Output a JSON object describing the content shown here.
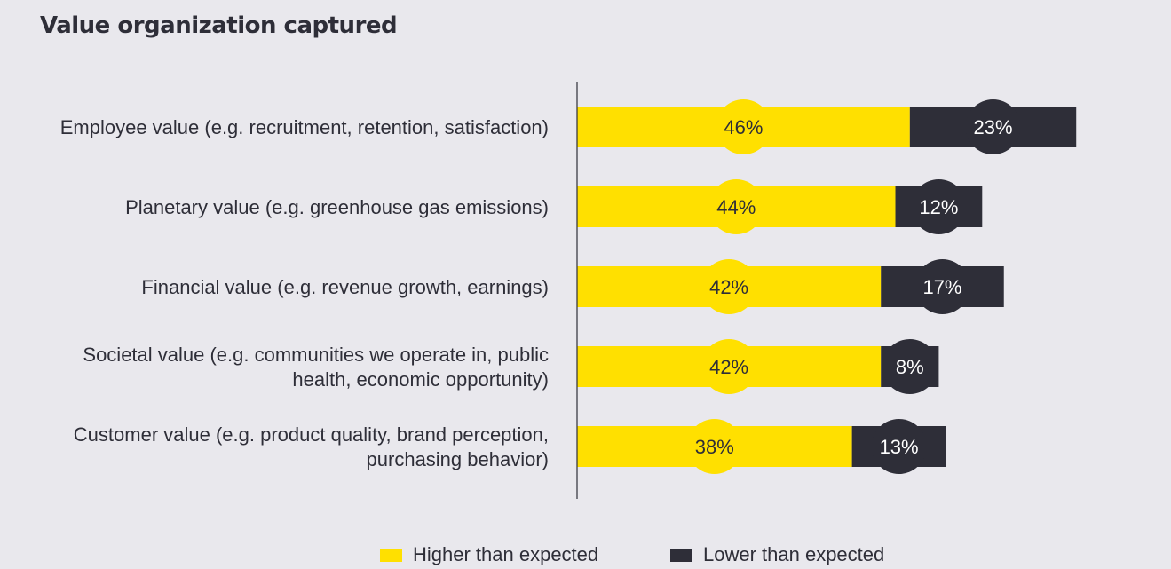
{
  "chart_data": {
    "type": "bar",
    "orientation": "horizontal",
    "stacked": true,
    "title": "Value organization captured",
    "categories": [
      [
        "Employee value (e.g. recruitment, retention, satisfaction)"
      ],
      [
        "Planetary value (e.g. greenhouse gas emissions)"
      ],
      [
        "Financial value (e.g. revenue growth, earnings)"
      ],
      [
        "Societal value (e.g. communities we operate in, public",
        "health, economic opportunity)"
      ],
      [
        "Customer value (e.g. product quality, brand perception,",
        "purchasing behavior)"
      ]
    ],
    "series": [
      {
        "name": "Higher than expected",
        "color": "#ffe000",
        "values": [
          46,
          44,
          42,
          42,
          38
        ],
        "labels": [
          "46%",
          "44%",
          "42%",
          "42%",
          "38%"
        ]
      },
      {
        "name": "Lower than expected",
        "color": "#2e2e38",
        "values": [
          23,
          12,
          17,
          8,
          13
        ],
        "labels": [
          "23%",
          "12%",
          "17%",
          "8%",
          "13%"
        ]
      }
    ],
    "xlim": [
      0,
      81
    ],
    "grid": false,
    "legend_position": "bottom"
  }
}
